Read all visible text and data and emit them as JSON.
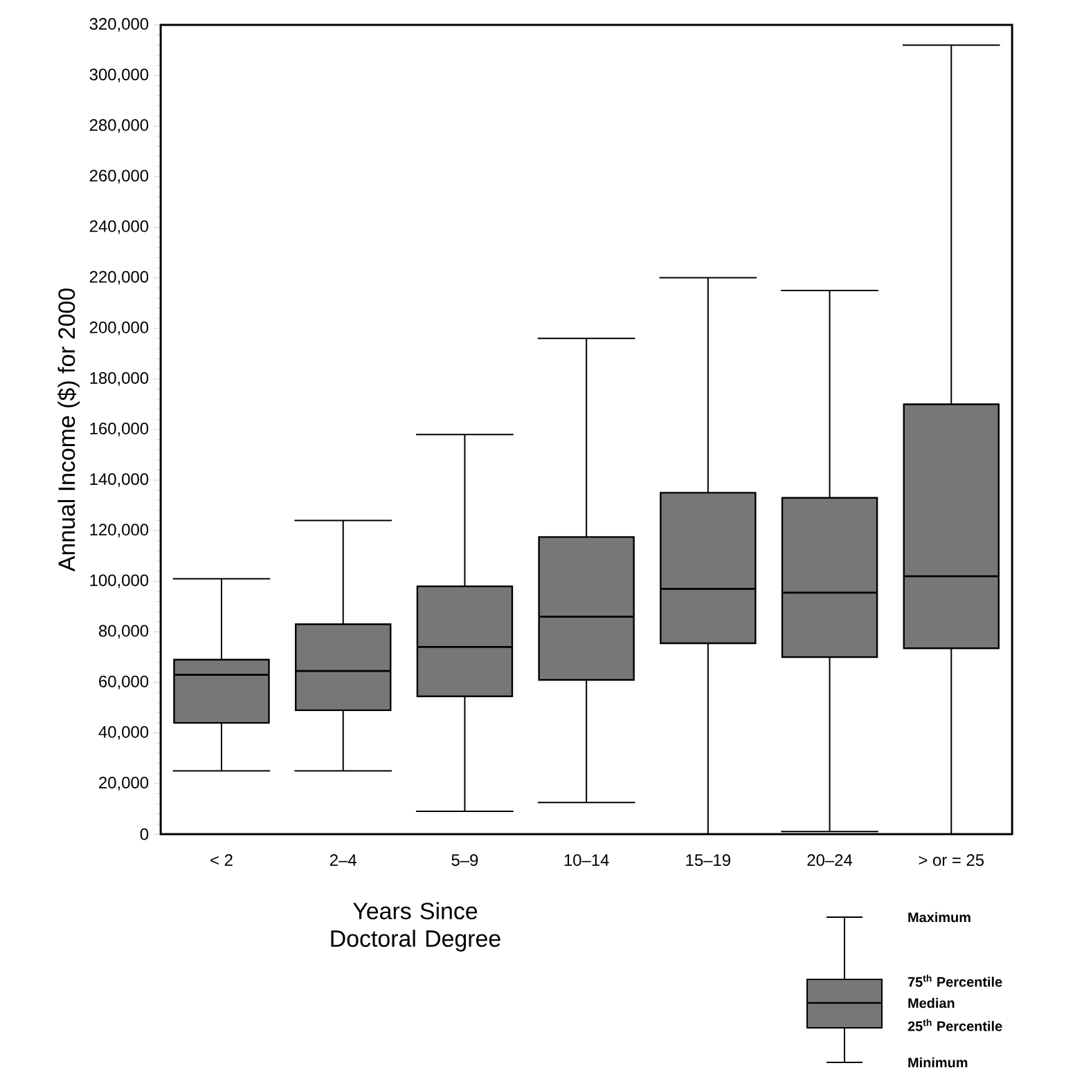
{
  "chart_data": {
    "type": "box",
    "xlabel": "Years Since Doctoral Degree",
    "ylabel": "Annual Income ($) for 2000",
    "categories": [
      "< 2",
      "2–4",
      "5–9",
      "10–14",
      "15–19",
      "20–24",
      "> or = 25"
    ],
    "color": "#777777",
    "boxes": [
      {
        "low": 25000,
        "q1": 44000,
        "median": 63000,
        "q3": 69000,
        "high": 101000
      },
      {
        "low": 25000,
        "q1": 49000,
        "median": 64500,
        "q3": 83000,
        "high": 124000
      },
      {
        "low": 9000,
        "q1": 54500,
        "median": 74000,
        "q3": 98000,
        "high": 158000
      },
      {
        "low": 12500,
        "q1": 61000,
        "median": 86000,
        "q3": 117500,
        "high": 196000
      },
      {
        "low": 0,
        "q1": 75500,
        "median": 97000,
        "q3": 135000,
        "high": 220000
      },
      {
        "low": 1000,
        "q1": 70000,
        "median": 95500,
        "q3": 133000,
        "high": 215000
      },
      {
        "low": 0,
        "q1": 73500,
        "median": 102000,
        "q3": 170000,
        "high": 312000
      }
    ],
    "ylim": [
      0,
      320000
    ],
    "yticks": [
      {
        "value": 0,
        "label": "0"
      },
      {
        "value": 20000,
        "label": "20,000"
      },
      {
        "value": 40000,
        "label": "40,000"
      },
      {
        "value": 60000,
        "label": "60,000"
      },
      {
        "value": 80000,
        "label": "80,000"
      },
      {
        "value": 100000,
        "label": "100,000"
      },
      {
        "value": 120000,
        "label": "120,000"
      },
      {
        "value": 140000,
        "label": "140,000"
      },
      {
        "value": 160000,
        "label": "160,000"
      },
      {
        "value": 180000,
        "label": "180,000"
      },
      {
        "value": 200000,
        "label": "200,000"
      },
      {
        "value": 220000,
        "label": "220,000"
      },
      {
        "value": 240000,
        "label": "240,000"
      },
      {
        "value": 260000,
        "label": "260,000"
      },
      {
        "value": 280000,
        "label": "280,000"
      },
      {
        "value": 300000,
        "label": "300,000"
      },
      {
        "value": 320000,
        "label": "320,000"
      }
    ],
    "annotations": [
      "Maximum",
      "75$^{th}$ Percentile",
      "Median",
      "25$^{th}$ Percentile",
      "Minimum"
    ]
  }
}
